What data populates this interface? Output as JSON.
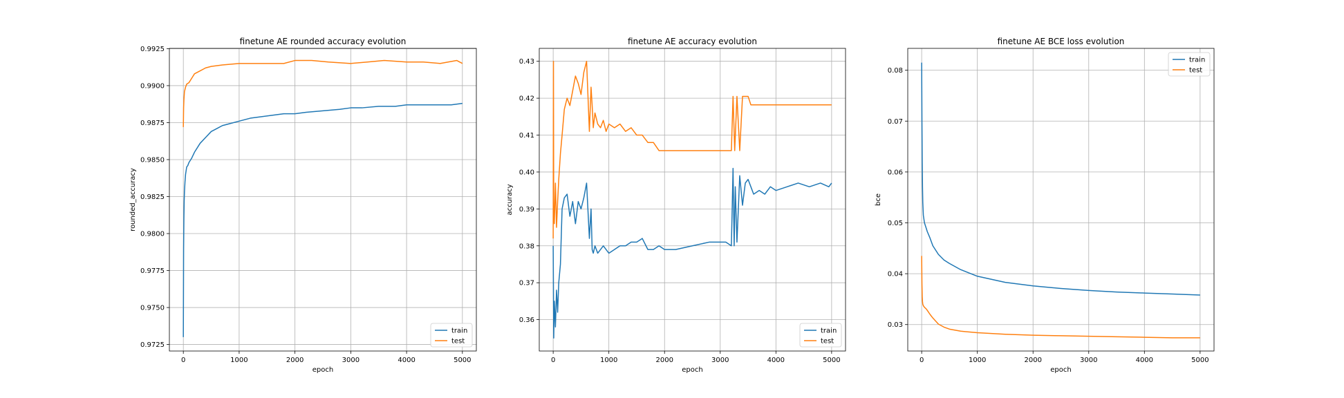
{
  "colors": {
    "train": "#1f77b4",
    "test": "#ff7f0e",
    "grid": "#b0b0b0"
  },
  "chart_data": [
    {
      "type": "line",
      "title": "finetune AE rounded accuracy evolution",
      "xlabel": "epoch",
      "ylabel": "rounded_accuracy",
      "xlim": [
        -250,
        5250
      ],
      "ylim": [
        0.97206,
        0.99252
      ],
      "xticks": [
        "0",
        "1000",
        "2000",
        "3000",
        "4000",
        "5000"
      ],
      "xtick_values": [
        0,
        1000,
        2000,
        3000,
        4000,
        5000
      ],
      "yticks": [
        "0.9725",
        "0.9750",
        "0.9775",
        "0.9800",
        "0.9825",
        "0.9850",
        "0.9875",
        "0.9900",
        "0.9925"
      ],
      "ytick_values": [
        0.9725,
        0.975,
        0.9775,
        0.98,
        0.9825,
        0.985,
        0.9875,
        0.99,
        0.9925
      ],
      "grid": true,
      "legend": "lower right",
      "series": [
        {
          "name": "train",
          "x": [
            0,
            5,
            10,
            15,
            20,
            30,
            40,
            60,
            80,
            100,
            150,
            200,
            300,
            400,
            500,
            600,
            700,
            800,
            1000,
            1200,
            1400,
            1600,
            1800,
            2000,
            2200,
            2500,
            2800,
            3000,
            3200,
            3500,
            3800,
            4000,
            4200,
            4500,
            4800,
            5000
          ],
          "y": [
            0.973,
            0.979,
            0.981,
            0.9822,
            0.9828,
            0.9835,
            0.984,
            0.9845,
            0.9846,
            0.9848,
            0.9851,
            0.9855,
            0.9861,
            0.9865,
            0.9869,
            0.9871,
            0.9873,
            0.9874,
            0.9876,
            0.9878,
            0.9879,
            0.988,
            0.9881,
            0.9881,
            0.9882,
            0.9883,
            0.9884,
            0.9885,
            0.9885,
            0.9886,
            0.9886,
            0.9887,
            0.9887,
            0.9887,
            0.9887,
            0.9888
          ]
        },
        {
          "name": "test",
          "x": [
            0,
            5,
            10,
            20,
            40,
            60,
            100,
            150,
            200,
            300,
            400,
            500,
            700,
            1000,
            1200,
            1500,
            1800,
            2000,
            2300,
            2600,
            3000,
            3300,
            3600,
            4000,
            4300,
            4600,
            4900,
            5000
          ],
          "y": [
            0.9872,
            0.9885,
            0.989,
            0.9896,
            0.9899,
            0.9901,
            0.9902,
            0.9905,
            0.9908,
            0.991,
            0.9912,
            0.9913,
            0.9914,
            0.9915,
            0.9915,
            0.9915,
            0.9915,
            0.9917,
            0.9917,
            0.9916,
            0.9915,
            0.9916,
            0.9917,
            0.9916,
            0.9916,
            0.9915,
            0.9917,
            0.9915
          ]
        }
      ]
    },
    {
      "type": "line",
      "title": "finetune AE accuracy evolution",
      "xlabel": "epoch",
      "ylabel": "accuracy",
      "xlim": [
        -250,
        5250
      ],
      "ylim": [
        0.3515,
        0.4335
      ],
      "xticks": [
        "0",
        "1000",
        "2000",
        "3000",
        "4000",
        "5000"
      ],
      "xtick_values": [
        0,
        1000,
        2000,
        3000,
        4000,
        5000
      ],
      "yticks": [
        "0.36",
        "0.37",
        "0.38",
        "0.39",
        "0.40",
        "0.41",
        "0.42",
        "0.43"
      ],
      "ytick_values": [
        0.36,
        0.37,
        0.38,
        0.39,
        0.4,
        0.41,
        0.42,
        0.43
      ],
      "grid": true,
      "legend": "lower right",
      "series": [
        {
          "name": "train",
          "x": [
            0,
            10,
            20,
            40,
            60,
            80,
            100,
            130,
            160,
            200,
            250,
            300,
            350,
            400,
            450,
            500,
            550,
            600,
            650,
            680,
            700,
            720,
            750,
            800,
            900,
            1000,
            1100,
            1200,
            1300,
            1400,
            1500,
            1600,
            1700,
            1800,
            1900,
            2000,
            2200,
            2500,
            2800,
            3000,
            3100,
            3200,
            3230,
            3250,
            3270,
            3300,
            3350,
            3400,
            3450,
            3500,
            3550,
            3600,
            3700,
            3800,
            3900,
            4000,
            4200,
            4400,
            4600,
            4800,
            4950,
            5000
          ],
          "y": [
            0.38,
            0.355,
            0.365,
            0.358,
            0.368,
            0.362,
            0.37,
            0.375,
            0.39,
            0.393,
            0.394,
            0.388,
            0.392,
            0.386,
            0.392,
            0.39,
            0.393,
            0.397,
            0.382,
            0.39,
            0.379,
            0.378,
            0.38,
            0.378,
            0.38,
            0.378,
            0.379,
            0.38,
            0.38,
            0.381,
            0.381,
            0.382,
            0.379,
            0.379,
            0.38,
            0.379,
            0.379,
            0.38,
            0.381,
            0.381,
            0.381,
            0.38,
            0.401,
            0.38,
            0.396,
            0.381,
            0.399,
            0.391,
            0.397,
            0.398,
            0.396,
            0.394,
            0.395,
            0.394,
            0.396,
            0.395,
            0.396,
            0.397,
            0.396,
            0.397,
            0.396,
            0.397
          ]
        },
        {
          "name": "test",
          "x": [
            0,
            5,
            10,
            20,
            40,
            60,
            80,
            100,
            130,
            160,
            200,
            250,
            300,
            350,
            400,
            450,
            500,
            550,
            600,
            650,
            680,
            700,
            720,
            750,
            800,
            850,
            900,
            950,
            1000,
            1100,
            1200,
            1300,
            1400,
            1500,
            1600,
            1700,
            1800,
            1900,
            2000,
            2200,
            2500,
            2800,
            3000,
            3150,
            3200,
            3230,
            3260,
            3300,
            3350,
            3400,
            3450,
            3500,
            3550,
            3600,
            4000,
            4500,
            5000
          ],
          "y": [
            0.382,
            0.43,
            0.39,
            0.386,
            0.397,
            0.385,
            0.392,
            0.398,
            0.405,
            0.41,
            0.417,
            0.42,
            0.418,
            0.422,
            0.426,
            0.424,
            0.421,
            0.427,
            0.43,
            0.411,
            0.423,
            0.418,
            0.412,
            0.416,
            0.413,
            0.412,
            0.414,
            0.411,
            0.413,
            0.412,
            0.413,
            0.411,
            0.412,
            0.41,
            0.41,
            0.408,
            0.408,
            0.4058,
            0.4058,
            0.4058,
            0.4058,
            0.4058,
            0.4058,
            0.4058,
            0.4058,
            0.4205,
            0.4058,
            0.4205,
            0.4058,
            0.4205,
            0.4205,
            0.4205,
            0.4182,
            0.4182,
            0.4182,
            0.4182,
            0.4182
          ]
        }
      ]
    },
    {
      "type": "line",
      "title": "finetune AE BCE loss evolution",
      "xlabel": "epoch",
      "ylabel": "bce",
      "xlim": [
        -250,
        5250
      ],
      "ylim": [
        0.0248,
        0.0843
      ],
      "xticks": [
        "0",
        "1000",
        "2000",
        "3000",
        "4000",
        "5000"
      ],
      "xtick_values": [
        0,
        1000,
        2000,
        3000,
        4000,
        5000
      ],
      "yticks": [
        "0.03",
        "0.04",
        "0.05",
        "0.06",
        "0.07",
        "0.08"
      ],
      "ytick_values": [
        0.03,
        0.04,
        0.05,
        0.06,
        0.07,
        0.08
      ],
      "grid": true,
      "legend": "upper right",
      "series": [
        {
          "name": "train",
          "x": [
            0,
            5,
            10,
            15,
            20,
            30,
            50,
            80,
            100,
            150,
            200,
            300,
            400,
            500,
            700,
            1000,
            1500,
            2000,
            2500,
            3000,
            3500,
            4000,
            4500,
            5000
          ],
          "y": [
            0.0815,
            0.07,
            0.062,
            0.057,
            0.054,
            0.0515,
            0.05,
            0.049,
            0.0483,
            0.047,
            0.0455,
            0.0438,
            0.0427,
            0.042,
            0.0408,
            0.0395,
            0.0383,
            0.0376,
            0.0371,
            0.0367,
            0.0364,
            0.0362,
            0.036,
            0.0358
          ]
        },
        {
          "name": "test",
          "x": [
            0,
            5,
            10,
            15,
            20,
            30,
            50,
            80,
            100,
            150,
            200,
            300,
            400,
            500,
            700,
            1000,
            1500,
            2000,
            2500,
            3000,
            3500,
            4000,
            4500,
            5000
          ],
          "y": [
            0.0435,
            0.038,
            0.0355,
            0.0345,
            0.034,
            0.0337,
            0.0334,
            0.0331,
            0.0328,
            0.032,
            0.0313,
            0.0301,
            0.0295,
            0.0291,
            0.0287,
            0.0284,
            0.0281,
            0.0279,
            0.0278,
            0.0277,
            0.0276,
            0.0275,
            0.0274,
            0.0274
          ]
        }
      ]
    }
  ]
}
